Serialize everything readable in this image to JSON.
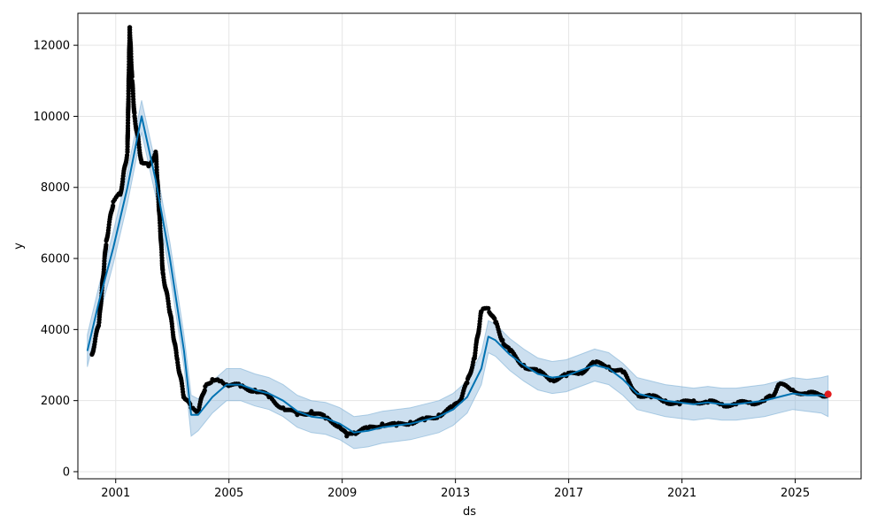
{
  "chart_data": {
    "type": "scatter",
    "title": "",
    "xlabel": "ds",
    "ylabel": "y",
    "xlim": [
      "1999-09-01",
      "2027-05-01"
    ],
    "ylim": [
      -200,
      12900
    ],
    "grid": true,
    "x_ticks": [
      "2001",
      "2005",
      "2009",
      "2013",
      "2017",
      "2021",
      "2025"
    ],
    "y_ticks": [
      "0",
      "2000",
      "4000",
      "6000",
      "8000",
      "10000",
      "12000"
    ],
    "colors": {
      "observed": "#000000",
      "forecast": "#0072B2",
      "interval": "#7fb0d6",
      "highlight": "#e31a1c"
    },
    "series": [
      {
        "kind": "observed",
        "x": [
          "2000-03-01",
          "2000-06-01",
          "2000-09-01",
          "2000-12-01",
          "2001-03-01",
          "2001-06-01",
          "2001-07-01",
          "2001-08-01",
          "2001-09-01",
          "2001-12-01",
          "2002-03-01",
          "2002-06-01",
          "2002-09-01",
          "2002-12-01",
          "2003-03-01",
          "2003-06-01",
          "2003-09-01",
          "2003-12-01",
          "2004-03-01",
          "2004-06-01",
          "2004-09-01",
          "2004-12-01",
          "2005-06-01",
          "2005-12-01",
          "2006-06-01",
          "2006-12-01",
          "2007-06-01",
          "2007-12-01",
          "2008-06-01",
          "2008-12-01",
          "2009-03-01",
          "2009-06-01",
          "2009-12-01",
          "2010-06-01",
          "2010-12-01",
          "2011-06-01",
          "2011-12-01",
          "2012-06-01",
          "2012-12-01",
          "2013-03-01",
          "2013-06-01",
          "2013-09-01",
          "2013-12-01",
          "2014-03-01",
          "2014-06-01",
          "2014-09-01",
          "2014-12-01",
          "2015-06-01",
          "2015-12-01",
          "2016-06-01",
          "2016-12-01",
          "2017-06-01",
          "2017-12-01",
          "2018-06-01",
          "2018-12-01",
          "2019-06-01",
          "2019-12-01",
          "2020-06-01",
          "2020-12-01",
          "2021-06-01",
          "2021-12-01",
          "2022-06-01",
          "2022-12-01",
          "2023-06-01",
          "2023-12-01",
          "2024-03-01",
          "2024-06-01",
          "2024-12-01",
          "2025-06-01",
          "2025-12-01",
          "2026-03-01"
        ],
        "y": [
          3300,
          4200,
          6500,
          7600,
          7800,
          9000,
          12500,
          11000,
          10000,
          8700,
          8600,
          9000,
          5600,
          4500,
          3200,
          2100,
          1800,
          1700,
          2400,
          2600,
          2550,
          2450,
          2400,
          2300,
          2100,
          1800,
          1600,
          1700,
          1500,
          1300,
          1000,
          1100,
          1200,
          1350,
          1300,
          1400,
          1450,
          1600,
          1800,
          2000,
          2500,
          3200,
          4500,
          4600,
          4200,
          3700,
          3400,
          3000,
          2800,
          2600,
          2700,
          2800,
          3050,
          2950,
          2800,
          2200,
          2100,
          2000,
          1900,
          2000,
          1950,
          1900,
          1900,
          1950,
          2000,
          2100,
          2450,
          2300,
          2200,
          2150,
          2200
        ]
      },
      {
        "kind": "forecast",
        "x": [
          "2000-01-01",
          "2000-06-01",
          "2000-12-01",
          "2001-06-01",
          "2001-09-01",
          "2001-12-01",
          "2002-06-01",
          "2002-12-01",
          "2003-06-01",
          "2003-09-01",
          "2003-12-01",
          "2004-06-01",
          "2004-12-01",
          "2005-06-01",
          "2005-12-01",
          "2006-06-01",
          "2006-12-01",
          "2007-06-01",
          "2007-12-01",
          "2008-06-01",
          "2008-12-01",
          "2009-06-01",
          "2009-12-01",
          "2010-06-01",
          "2010-12-01",
          "2011-06-01",
          "2011-12-01",
          "2012-06-01",
          "2012-12-01",
          "2013-06-01",
          "2013-12-01",
          "2014-03-01",
          "2014-06-01",
          "2014-12-01",
          "2015-06-01",
          "2015-12-01",
          "2016-06-01",
          "2016-12-01",
          "2017-06-01",
          "2017-12-01",
          "2018-06-01",
          "2018-12-01",
          "2019-06-01",
          "2019-12-01",
          "2020-06-01",
          "2020-12-01",
          "2021-06-01",
          "2021-12-01",
          "2022-06-01",
          "2022-12-01",
          "2023-06-01",
          "2023-12-01",
          "2024-06-01",
          "2024-12-01",
          "2025-06-01",
          "2025-12-01",
          "2026-03-01"
        ],
        "y": [
          3400,
          4800,
          6300,
          8000,
          9000,
          10000,
          8200,
          6000,
          3400,
          1600,
          1600,
          2100,
          2450,
          2450,
          2300,
          2200,
          2000,
          1700,
          1550,
          1500,
          1350,
          1100,
          1150,
          1250,
          1300,
          1350,
          1450,
          1550,
          1750,
          2100,
          2900,
          3800,
          3700,
          3300,
          3000,
          2750,
          2650,
          2700,
          2850,
          3000,
          2900,
          2600,
          2200,
          2100,
          2000,
          1950,
          1900,
          1950,
          1900,
          1900,
          1950,
          2000,
          2100,
          2200,
          2150,
          2150,
          2100
        ]
      },
      {
        "kind": "interval",
        "x": [
          "2000-01-01",
          "2000-06-01",
          "2000-12-01",
          "2001-06-01",
          "2001-09-01",
          "2001-12-01",
          "2002-06-01",
          "2002-12-01",
          "2003-06-01",
          "2003-09-01",
          "2003-12-01",
          "2004-06-01",
          "2004-12-01",
          "2005-06-01",
          "2005-12-01",
          "2006-06-01",
          "2006-12-01",
          "2007-06-01",
          "2007-12-01",
          "2008-06-01",
          "2008-12-01",
          "2009-06-01",
          "2009-12-01",
          "2010-06-01",
          "2010-12-01",
          "2011-06-01",
          "2011-12-01",
          "2012-06-01",
          "2012-12-01",
          "2013-06-01",
          "2013-12-01",
          "2014-03-01",
          "2014-06-01",
          "2014-12-01",
          "2015-06-01",
          "2015-12-01",
          "2016-06-01",
          "2016-12-01",
          "2017-06-01",
          "2017-12-01",
          "2018-06-01",
          "2018-12-01",
          "2019-06-01",
          "2019-12-01",
          "2020-06-01",
          "2020-12-01",
          "2021-06-01",
          "2021-12-01",
          "2022-06-01",
          "2022-12-01",
          "2023-06-01",
          "2023-12-01",
          "2024-06-01",
          "2024-12-01",
          "2025-06-01",
          "2025-12-01",
          "2026-03-01"
        ],
        "lower": [
          2950,
          4350,
          5850,
          7550,
          8550,
          9550,
          7750,
          5550,
          2950,
          1000,
          1150,
          1650,
          2000,
          2000,
          1850,
          1750,
          1550,
          1250,
          1100,
          1050,
          900,
          650,
          700,
          800,
          850,
          900,
          1000,
          1100,
          1300,
          1650,
          2450,
          3350,
          3250,
          2850,
          2550,
          2300,
          2200,
          2250,
          2400,
          2550,
          2450,
          2150,
          1750,
          1650,
          1550,
          1500,
          1450,
          1500,
          1450,
          1450,
          1500,
          1550,
          1650,
          1750,
          1700,
          1650,
          1550
        ],
        "upper": [
          3850,
          5250,
          6750,
          8450,
          9450,
          10450,
          8650,
          6450,
          3850,
          2150,
          2050,
          2550,
          2900,
          2900,
          2750,
          2650,
          2450,
          2150,
          2000,
          1950,
          1800,
          1550,
          1600,
          1700,
          1750,
          1800,
          1900,
          2000,
          2200,
          2550,
          3350,
          4250,
          4150,
          3750,
          3450,
          3200,
          3100,
          3150,
          3300,
          3450,
          3350,
          3050,
          2650,
          2550,
          2450,
          2400,
          2350,
          2400,
          2350,
          2350,
          2400,
          2450,
          2550,
          2650,
          2600,
          2650,
          2700
        ]
      },
      {
        "kind": "highlight",
        "x": [
          "2026-03-01"
        ],
        "y": [
          2180
        ]
      }
    ]
  }
}
